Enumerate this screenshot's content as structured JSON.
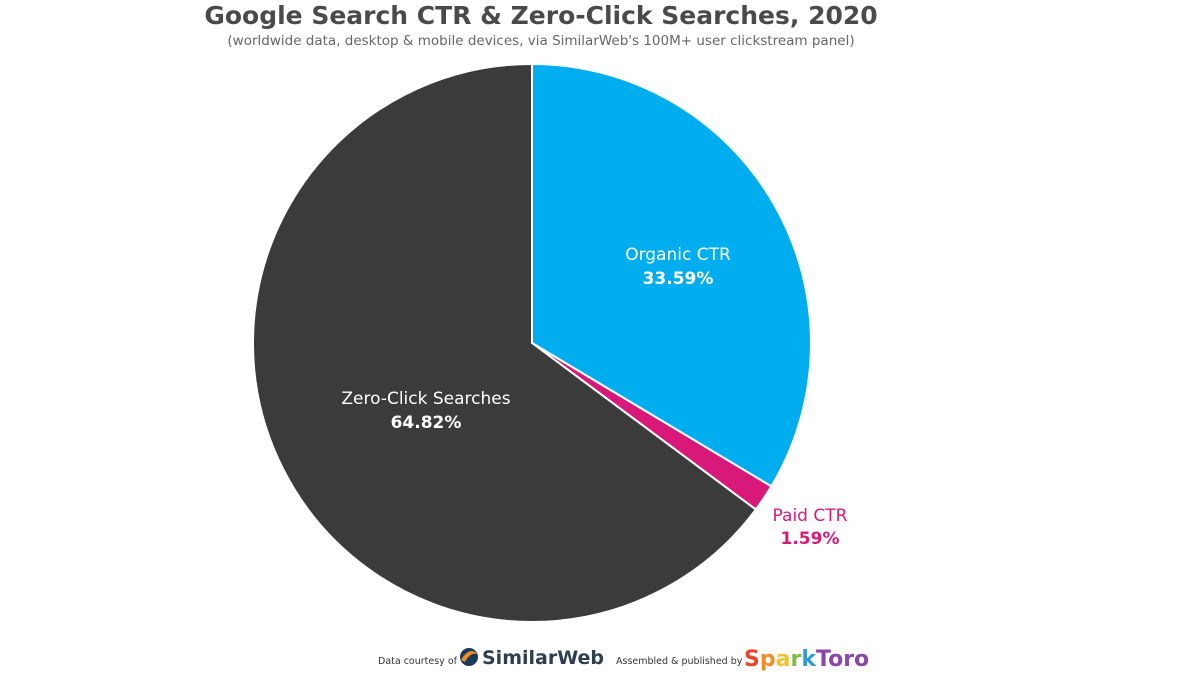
{
  "chart_data": {
    "type": "pie",
    "title": "Google Search CTR & Zero-Click Searches, 2020",
    "subtitle": "(worldwide data, desktop & mobile devices, via SimilarWeb's 100M+ user clickstream panel)",
    "slices": [
      {
        "name": "Organic CTR",
        "label": "33.59%",
        "value": 33.59,
        "color": "#00aeef",
        "label_color": "#ffffff"
      },
      {
        "name": "Paid CTR",
        "label": "1.59%",
        "value": 1.59,
        "color": "#d8197a",
        "label_color": "#d8197a"
      },
      {
        "name": "Zero-Click Searches",
        "label": "64.82%",
        "value": 64.82,
        "color": "#3b3b3c",
        "label_color": "#ffffff"
      }
    ],
    "start_angle_deg": 0,
    "direction": "clockwise"
  },
  "footer": {
    "data_courtesy": "Data courtesy of",
    "similarweb": "SimilarWeb",
    "assembled": "Assembled & published by",
    "sparktoro": "SparkToro",
    "similarweb_color": "#1b3a5b",
    "sparktoro_colors": [
      "#e8452c",
      "#f28c28",
      "#f2c12e",
      "#7dbb42",
      "#2e9bd6",
      "#8e44ad"
    ]
  }
}
